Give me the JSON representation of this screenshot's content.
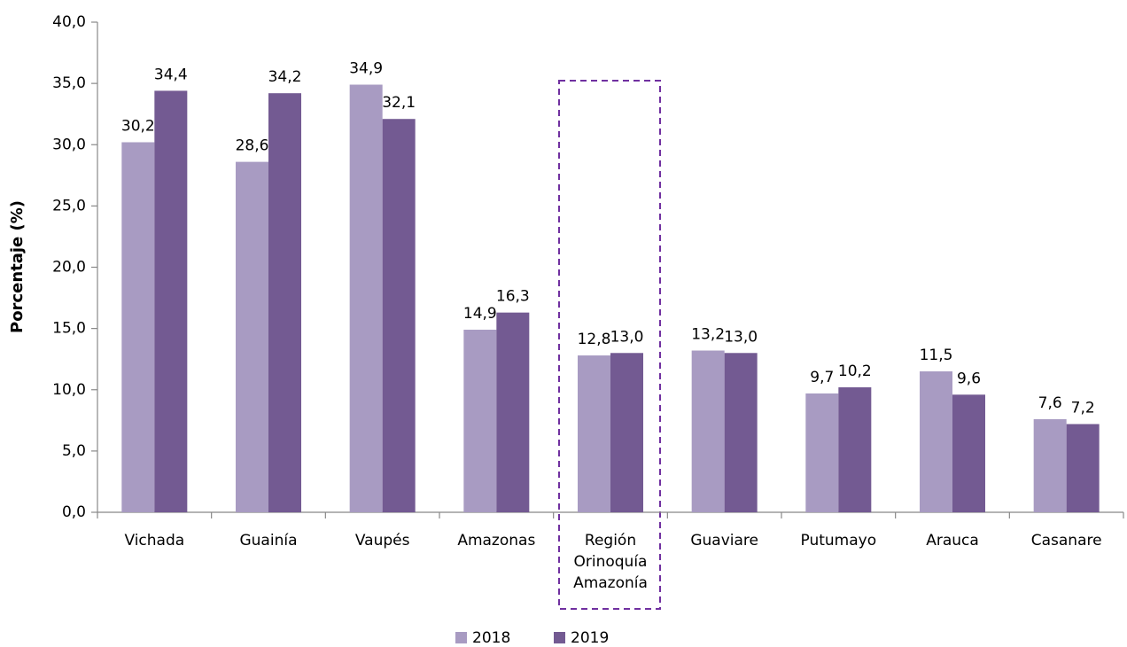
{
  "chart_data": {
    "type": "bar",
    "y_label": "Porcentaje (%)",
    "categories": [
      "Vichada",
      "Guainía",
      "Vaupés",
      "Amazonas",
      "Región Orinoquía Amazonía",
      "Guaviare",
      "Putumayo",
      "Arauca",
      "Casanare"
    ],
    "series": [
      {
        "name": "2018",
        "color": "#a89bc2",
        "values": [
          30.2,
          28.6,
          34.9,
          14.9,
          12.8,
          13.2,
          9.7,
          11.5,
          7.6
        ],
        "value_labels": [
          "30,2",
          "28,6",
          "34,9",
          "14,9",
          "12,8",
          "13,2",
          "9,7",
          "11,5",
          "7,6"
        ]
      },
      {
        "name": "2019",
        "color": "#735a92",
        "values": [
          34.4,
          34.2,
          32.1,
          16.3,
          13.0,
          13.0,
          10.2,
          9.6,
          7.2
        ],
        "value_labels": [
          "34,4",
          "34,2",
          "32,1",
          "16,3",
          "13,0",
          "13,0",
          "10,2",
          "9,6",
          "7,2"
        ]
      }
    ],
    "ylim": [
      0,
      40
    ],
    "yticks": [
      {
        "value": 0,
        "label": "0,0"
      },
      {
        "value": 5,
        "label": "5,0"
      },
      {
        "value": 10,
        "label": "10,0"
      },
      {
        "value": 15,
        "label": "15,0"
      },
      {
        "value": 20,
        "label": "20,0"
      },
      {
        "value": 25,
        "label": "25,0"
      },
      {
        "value": 30,
        "label": "30,0"
      },
      {
        "value": 35,
        "label": "35,0"
      },
      {
        "value": 40,
        "label": "40,0"
      }
    ],
    "grid": false,
    "legend": "bottom"
  }
}
